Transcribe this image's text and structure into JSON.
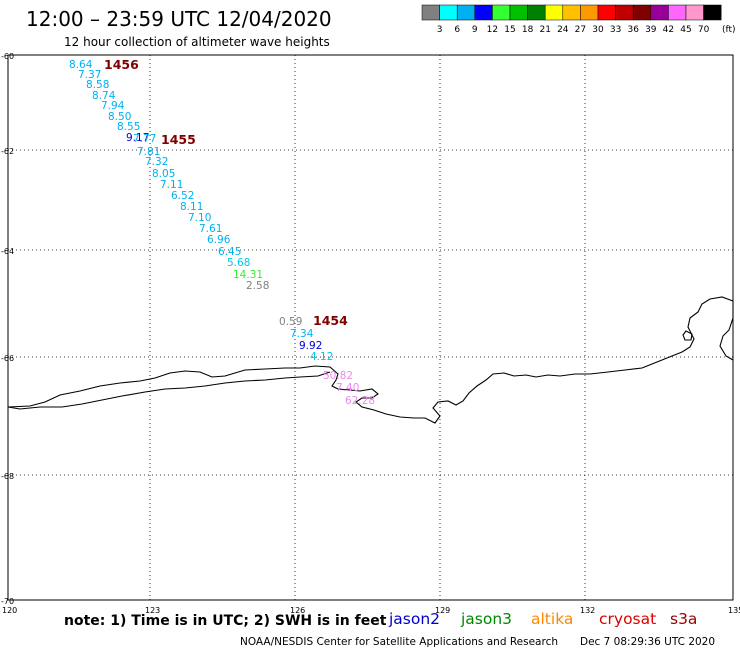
{
  "title": "12:00 – 23:59 UTC 12/04/2020",
  "subtitle": "12 hour collection of altimeter wave heights",
  "legend": {
    "colors": [
      "#808080",
      "#00ffff",
      "#00b0f0",
      "#0000ff",
      "#33ff33",
      "#00c000",
      "#008000",
      "#ffff00",
      "#ffc000",
      "#ff9900",
      "#ff0000",
      "#c00000",
      "#800000",
      "#990099",
      "#ff66ff",
      "#ff99cc",
      "#000000"
    ],
    "labels": [
      "3",
      "6",
      "9",
      "12",
      "15",
      "18",
      "21",
      "24",
      "27",
      "30",
      "33",
      "36",
      "39",
      "42",
      "45",
      "70"
    ],
    "unit": "(ft)"
  },
  "axes": {
    "lat_labels": [
      "-60",
      "-62",
      "-64",
      "-66",
      "-68",
      "-70"
    ],
    "lon_labels": [
      "120",
      "123",
      "126",
      "129",
      "132",
      "135"
    ]
  },
  "tracks": [
    {
      "label": "1456",
      "color": "#800000"
    },
    {
      "label": "1455",
      "color": "#800000"
    },
    {
      "label": "1454",
      "color": "#800000"
    }
  ],
  "observations": [
    {
      "v": "8.64",
      "c": "#00b0f0"
    },
    {
      "v": "7.37",
      "c": "#00b0f0"
    },
    {
      "v": "8.58",
      "c": "#00b0f0"
    },
    {
      "v": "8.74",
      "c": "#00b0f0"
    },
    {
      "v": "7.94",
      "c": "#00b0f0"
    },
    {
      "v": "8.50",
      "c": "#00b0f0"
    },
    {
      "v": "8.55",
      "c": "#00b0f0"
    },
    {
      "v": "9.17",
      "c": "#0000cc"
    },
    {
      "v": "7.77",
      "c": "#00b0f0"
    },
    {
      "v": "7.81",
      "c": "#00b0f0"
    },
    {
      "v": "7.32",
      "c": "#00b0f0"
    },
    {
      "v": "8.05",
      "c": "#00b0f0"
    },
    {
      "v": "7.11",
      "c": "#00b0f0"
    },
    {
      "v": "6.52",
      "c": "#00b0f0"
    },
    {
      "v": "8.11",
      "c": "#00b0f0"
    },
    {
      "v": "7.10",
      "c": "#00b0f0"
    },
    {
      "v": "7.61",
      "c": "#00b0f0"
    },
    {
      "v": "6.96",
      "c": "#00b0f0"
    },
    {
      "v": "6.45",
      "c": "#00b0f0"
    },
    {
      "v": "5.68",
      "c": "#00c8e0"
    },
    {
      "v": "14.31",
      "c": "#33ee33"
    },
    {
      "v": "2.58",
      "c": "#808080"
    },
    {
      "v": "0.59",
      "c": "#808080"
    },
    {
      "v": "7.34",
      "c": "#00b0f0"
    },
    {
      "v": "9.92",
      "c": "#0000cc"
    },
    {
      "v": "4.12",
      "c": "#00c8e0"
    },
    {
      "v": "50.82",
      "c": "#ee88ee"
    },
    {
      "v": "7.40",
      "c": "#ee88ee"
    },
    {
      "v": "62.28",
      "c": "#ee88ee"
    }
  ],
  "note": "note: 1) Time is in UTC; 2) SWH is in feet",
  "satellites": [
    {
      "name": "jason2",
      "color": "#0000cc"
    },
    {
      "name": "jason3",
      "color": "#008800"
    },
    {
      "name": "altika",
      "color": "#ff8800"
    },
    {
      "name": "cryosat",
      "color": "#dd0000"
    },
    {
      "name": "s3a",
      "color": "#990000"
    }
  ],
  "credit": "NOAA/NESDIS Center for Satellite Applications and Research",
  "timestamp": "Dec  7 08:29:36 UTC 2020"
}
